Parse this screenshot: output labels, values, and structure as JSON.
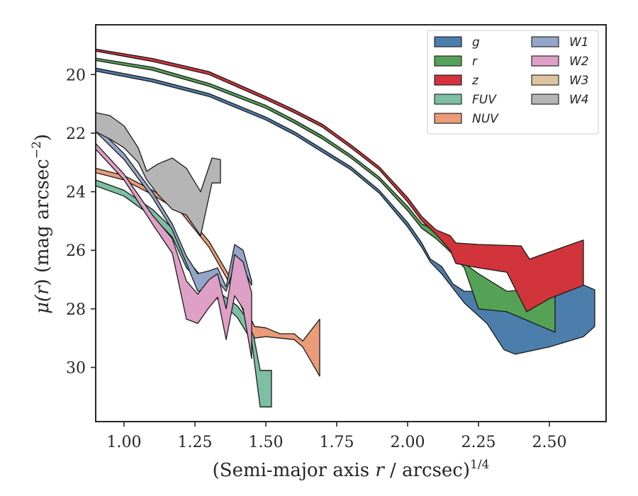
{
  "chart_data": {
    "type": "area",
    "xlabel": "(Semi-major axis r / arcsec)1/4",
    "xlabel_parts": {
      "prefix": "(Semi-major axis ",
      "var": "r",
      "mid": " / arcsec)",
      "sup": "1/4"
    },
    "ylabel": "μ(r) (mag arcsec−2)",
    "ylabel_parts": {
      "mu": "μ(",
      "var": "r",
      "mid": ") (mag arcsec",
      "sup": "−2",
      "end": ")"
    },
    "xlim": [
      0.9,
      2.7
    ],
    "ylim": [
      31.85,
      18.3
    ],
    "y_inverted": true,
    "xticks": [
      1.0,
      1.25,
      1.5,
      1.75,
      2.0,
      2.25,
      2.5
    ],
    "xtick_labels": [
      "1.00",
      "1.25",
      "1.50",
      "1.75",
      "2.00",
      "2.25",
      "2.50"
    ],
    "yticks": [
      20,
      22,
      24,
      26,
      28,
      30
    ],
    "ytick_labels": [
      "20",
      "22",
      "24",
      "26",
      "28",
      "30"
    ],
    "legend": {
      "position": "upper-right",
      "columns": 2
    },
    "series": [
      {
        "name": "g",
        "color": "#4c7eab",
        "upper": [
          [
            0.9,
            19.78
          ],
          [
            1.1,
            20.15
          ],
          [
            1.3,
            20.65
          ],
          [
            1.5,
            21.45
          ],
          [
            1.6,
            21.95
          ],
          [
            1.7,
            22.55
          ],
          [
            1.8,
            23.15
          ],
          [
            1.9,
            23.95
          ],
          [
            2.0,
            25.05
          ],
          [
            2.05,
            25.75
          ],
          [
            2.08,
            26.3
          ],
          [
            2.12,
            26.55
          ],
          [
            2.16,
            27.15
          ],
          [
            2.2,
            27.4
          ],
          [
            2.28,
            27.4
          ],
          [
            2.38,
            27.45
          ],
          [
            2.5,
            27.3
          ],
          [
            2.6,
            27.1
          ],
          [
            2.66,
            27.35
          ],
          [
            2.66,
            28.6
          ]
        ],
        "lower": [
          [
            0.9,
            19.88
          ],
          [
            1.1,
            20.25
          ],
          [
            1.3,
            20.75
          ],
          [
            1.5,
            21.55
          ],
          [
            1.6,
            22.05
          ],
          [
            1.7,
            22.65
          ],
          [
            1.8,
            23.25
          ],
          [
            1.9,
            24.05
          ],
          [
            2.0,
            25.2
          ],
          [
            2.05,
            25.9
          ],
          [
            2.08,
            26.4
          ],
          [
            2.12,
            26.8
          ],
          [
            2.16,
            27.3
          ],
          [
            2.2,
            27.8
          ],
          [
            2.28,
            28.5
          ],
          [
            2.34,
            29.4
          ],
          [
            2.38,
            29.55
          ],
          [
            2.5,
            29.3
          ],
          [
            2.62,
            28.95
          ]
        ]
      },
      {
        "name": "r",
        "color": "#55a256",
        "upper": [
          [
            0.9,
            19.44
          ],
          [
            1.1,
            19.75
          ],
          [
            1.3,
            20.3
          ],
          [
            1.5,
            21.05
          ],
          [
            1.6,
            21.55
          ],
          [
            1.7,
            22.1
          ],
          [
            1.8,
            22.75
          ],
          [
            1.9,
            23.5
          ],
          [
            2.0,
            24.5
          ],
          [
            2.05,
            25.1
          ],
          [
            2.1,
            25.3
          ],
          [
            2.15,
            25.7
          ],
          [
            2.2,
            26.45
          ],
          [
            2.25,
            26.8
          ],
          [
            2.35,
            27.4
          ],
          [
            2.52,
            27.25
          ]
        ],
        "lower": [
          [
            0.9,
            19.52
          ],
          [
            1.1,
            19.85
          ],
          [
            1.3,
            20.4
          ],
          [
            1.5,
            21.15
          ],
          [
            1.6,
            21.65
          ],
          [
            1.7,
            22.2
          ],
          [
            1.8,
            22.85
          ],
          [
            1.9,
            23.6
          ],
          [
            2.0,
            24.65
          ],
          [
            2.05,
            25.25
          ],
          [
            2.1,
            25.6
          ],
          [
            2.15,
            26.05
          ],
          [
            2.2,
            26.6
          ],
          [
            2.25,
            28.0
          ],
          [
            2.35,
            28.1
          ],
          [
            2.52,
            28.8
          ]
        ]
      },
      {
        "name": "z",
        "color": "#d1343b",
        "upper": [
          [
            0.9,
            19.13
          ],
          [
            1.1,
            19.45
          ],
          [
            1.3,
            19.9
          ],
          [
            1.5,
            20.75
          ],
          [
            1.6,
            21.2
          ],
          [
            1.7,
            21.7
          ],
          [
            1.8,
            22.4
          ],
          [
            1.9,
            23.15
          ],
          [
            2.0,
            24.2
          ],
          [
            2.05,
            24.85
          ],
          [
            2.1,
            25.3
          ],
          [
            2.15,
            25.5
          ],
          [
            2.17,
            25.75
          ],
          [
            2.25,
            25.8
          ],
          [
            2.4,
            25.85
          ],
          [
            2.43,
            26.3
          ],
          [
            2.62,
            25.65
          ]
        ],
        "lower": [
          [
            0.9,
            19.2
          ],
          [
            1.1,
            19.55
          ],
          [
            1.3,
            20.0
          ],
          [
            1.5,
            20.85
          ],
          [
            1.6,
            21.3
          ],
          [
            1.7,
            21.8
          ],
          [
            1.8,
            22.5
          ],
          [
            1.9,
            23.25
          ],
          [
            2.0,
            24.35
          ],
          [
            2.05,
            25.0
          ],
          [
            2.1,
            25.45
          ],
          [
            2.15,
            26.0
          ],
          [
            2.17,
            26.45
          ],
          [
            2.25,
            26.6
          ],
          [
            2.35,
            26.75
          ],
          [
            2.42,
            28.1
          ],
          [
            2.5,
            27.65
          ],
          [
            2.62,
            27.2
          ]
        ]
      },
      {
        "name": "FUV",
        "color": "#7dbea5",
        "upper": [
          [
            0.9,
            23.6
          ],
          [
            1.0,
            23.95
          ],
          [
            1.1,
            24.6
          ],
          [
            1.17,
            25.25
          ],
          [
            1.22,
            26.3
          ],
          [
            1.3,
            27.2
          ],
          [
            1.4,
            27.9
          ],
          [
            1.45,
            28.55
          ],
          [
            1.48,
            30.1
          ],
          [
            1.52,
            30.1
          ]
        ],
        "lower": [
          [
            0.9,
            23.8
          ],
          [
            1.0,
            24.15
          ],
          [
            1.1,
            24.85
          ],
          [
            1.17,
            25.55
          ],
          [
            1.22,
            26.6
          ],
          [
            1.3,
            27.4
          ],
          [
            1.4,
            28.3
          ],
          [
            1.45,
            29.1
          ],
          [
            1.48,
            31.35
          ],
          [
            1.52,
            31.35
          ]
        ]
      },
      {
        "name": "NUV",
        "color": "#ea9b78",
        "upper": [
          [
            0.9,
            23.2
          ],
          [
            1.0,
            23.45
          ],
          [
            1.1,
            23.95
          ],
          [
            1.2,
            24.55
          ],
          [
            1.3,
            25.7
          ],
          [
            1.4,
            27.35
          ],
          [
            1.46,
            28.6
          ],
          [
            1.5,
            28.65
          ],
          [
            1.55,
            28.85
          ],
          [
            1.6,
            28.85
          ],
          [
            1.63,
            29.1
          ],
          [
            1.69,
            28.35
          ]
        ],
        "lower": [
          [
            0.9,
            23.35
          ],
          [
            1.0,
            23.6
          ],
          [
            1.1,
            24.1
          ],
          [
            1.2,
            24.7
          ],
          [
            1.3,
            25.9
          ],
          [
            1.4,
            27.6
          ],
          [
            1.46,
            29.0
          ],
          [
            1.5,
            28.95
          ],
          [
            1.55,
            29.0
          ],
          [
            1.6,
            29.05
          ],
          [
            1.63,
            29.3
          ],
          [
            1.69,
            30.3
          ]
        ]
      },
      {
        "name": "W1",
        "color": "#93a6c8",
        "upper": [
          [
            0.9,
            21.75
          ],
          [
            1.0,
            22.7
          ],
          [
            1.1,
            24.0
          ],
          [
            1.17,
            25.1
          ],
          [
            1.22,
            26.2
          ],
          [
            1.26,
            26.8
          ],
          [
            1.3,
            26.7
          ],
          [
            1.33,
            26.6
          ],
          [
            1.36,
            27.25
          ],
          [
            1.39,
            25.8
          ],
          [
            1.42,
            26.0
          ],
          [
            1.45,
            27.05
          ]
        ],
        "lower": [
          [
            0.9,
            21.95
          ],
          [
            1.0,
            22.9
          ],
          [
            1.1,
            24.2
          ],
          [
            1.17,
            25.3
          ],
          [
            1.22,
            26.45
          ],
          [
            1.26,
            27.4
          ],
          [
            1.3,
            27.3
          ],
          [
            1.33,
            27.05
          ],
          [
            1.36,
            27.4
          ],
          [
            1.39,
            26.5
          ],
          [
            1.42,
            26.6
          ],
          [
            1.45,
            27.2
          ]
        ]
      },
      {
        "name": "W2",
        "color": "#dea0c6",
        "upper": [
          [
            0.9,
            22.35
          ],
          [
            1.0,
            23.4
          ],
          [
            1.1,
            24.8
          ],
          [
            1.17,
            25.6
          ],
          [
            1.22,
            27.05
          ],
          [
            1.26,
            27.5
          ],
          [
            1.3,
            27.0
          ],
          [
            1.33,
            26.8
          ],
          [
            1.36,
            28.0
          ],
          [
            1.39,
            26.15
          ],
          [
            1.42,
            26.4
          ],
          [
            1.45,
            27.45
          ]
        ],
        "lower": [
          [
            0.9,
            22.55
          ],
          [
            1.0,
            23.6
          ],
          [
            1.1,
            25.1
          ],
          [
            1.17,
            26.1
          ],
          [
            1.22,
            28.35
          ],
          [
            1.26,
            28.5
          ],
          [
            1.3,
            27.95
          ],
          [
            1.33,
            27.6
          ],
          [
            1.36,
            29.05
          ],
          [
            1.39,
            27.55
          ],
          [
            1.42,
            28.0
          ],
          [
            1.45,
            29.7
          ]
        ]
      },
      {
        "name": "W3",
        "color": "#dec5a0",
        "upper": [],
        "lower": []
      },
      {
        "name": "W4",
        "color": "#b5b5b5",
        "upper": [
          [
            0.9,
            21.3
          ],
          [
            0.95,
            21.4
          ],
          [
            1.0,
            21.75
          ],
          [
            1.05,
            22.5
          ],
          [
            1.08,
            23.3
          ],
          [
            1.12,
            23.05
          ],
          [
            1.17,
            22.85
          ],
          [
            1.22,
            23.2
          ],
          [
            1.27,
            24.0
          ],
          [
            1.31,
            22.85
          ],
          [
            1.34,
            22.9
          ]
        ],
        "lower": [
          [
            0.9,
            21.95
          ],
          [
            0.95,
            22.2
          ],
          [
            1.0,
            22.5
          ],
          [
            1.05,
            23.0
          ],
          [
            1.08,
            23.6
          ],
          [
            1.12,
            24.1
          ],
          [
            1.17,
            24.6
          ],
          [
            1.22,
            24.8
          ],
          [
            1.27,
            25.5
          ],
          [
            1.31,
            23.7
          ],
          [
            1.34,
            23.7
          ]
        ]
      }
    ]
  }
}
